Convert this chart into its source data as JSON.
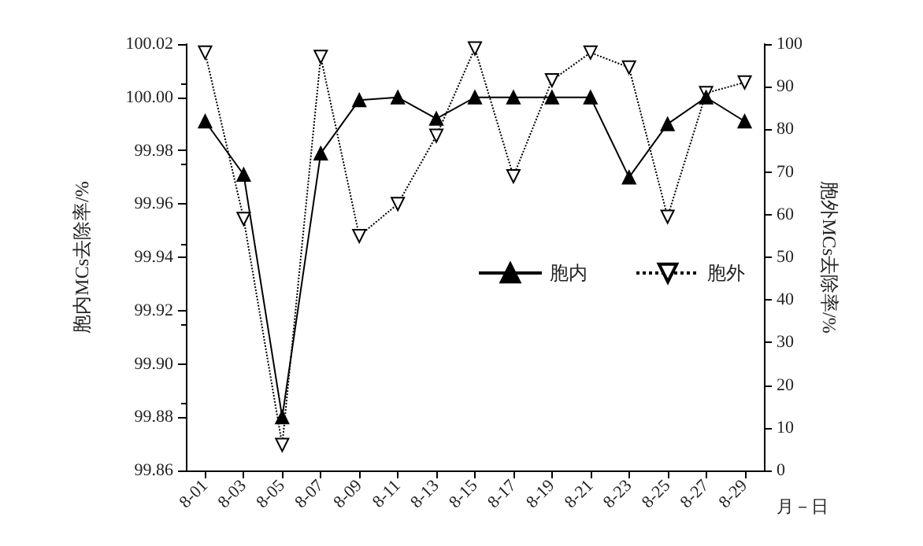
{
  "chart_data": {
    "type": "line",
    "categories": [
      "8-01",
      "8-03",
      "8-05",
      "8-07",
      "8-09",
      "8-11",
      "8-13",
      "8-15",
      "8-17",
      "8-19",
      "8-21",
      "8-23",
      "8-25",
      "8-27",
      "8-29"
    ],
    "xlabel": "月－日",
    "ylabel": "胞内MCs去除率/%",
    "y2label": "胞外MCs去除率/%",
    "series": [
      {
        "name": "胞内",
        "color": "#000000",
        "marker": "triangle",
        "line_style": "solid",
        "values": [
          99.991,
          99.971,
          99.88,
          99.979,
          99.999,
          100.0,
          99.992,
          100.0,
          100.0,
          100.0,
          100.0,
          99.97,
          99.99,
          100.0,
          99.991
        ]
      },
      {
        "name": "胞外",
        "color": "#000000",
        "marker": "triangle-down-open",
        "line_style": "dotted",
        "axis": "y2",
        "values": [
          98,
          59,
          6,
          97,
          55,
          62.5,
          78.5,
          99,
          69,
          91.5,
          98,
          94.5,
          59.5,
          88.5,
          91
        ]
      }
    ],
    "ylim": [
      99.86,
      100.02
    ],
    "yticks": [
      {
        "value": 99.86,
        "label": "99.86"
      },
      {
        "value": 99.88,
        "label": "99.88"
      },
      {
        "value": 99.9,
        "label": "99.90"
      },
      {
        "value": 99.92,
        "label": "99.92"
      },
      {
        "value": 99.94,
        "label": "99.94"
      },
      {
        "value": 99.96,
        "label": "99.96"
      },
      {
        "value": 99.98,
        "label": "99.98"
      },
      {
        "value": 100,
        "label": "100.00"
      },
      {
        "value": 100.02,
        "label": "100.02"
      }
    ],
    "y2lim": [
      0,
      100
    ],
    "y2ticks": [
      0,
      10,
      20,
      30,
      40,
      50,
      60,
      70,
      80,
      90,
      100
    ],
    "legend": "right",
    "grid": false
  }
}
